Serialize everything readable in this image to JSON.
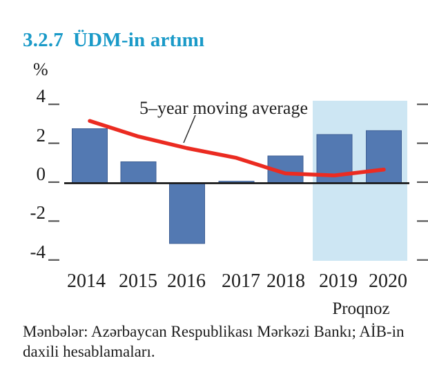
{
  "header": {
    "number": "3.2.7",
    "title": "ÜDM-in artımı"
  },
  "theme": {
    "title_color": "#1A9AC8",
    "text_color": "#1c1c1c",
    "axis_color": "#1a1a1a",
    "tick_color": "#555555"
  },
  "chart_data": {
    "type": "bar",
    "categories": [
      "2014",
      "2015",
      "2016",
      "2017",
      "2018",
      "2019",
      "2020"
    ],
    "bar_values": [
      2.8,
      1.1,
      -3.1,
      0.1,
      1.4,
      2.5,
      2.7
    ],
    "line_series": {
      "name": "5–year moving average",
      "values": [
        3.2,
        2.4,
        1.8,
        1.3,
        0.5,
        0.4,
        0.7
      ]
    },
    "ylabel": "%",
    "yticks": [
      4,
      2,
      0,
      -2,
      -4
    ],
    "ylim": [
      -4.2,
      4.2
    ],
    "grid": "off",
    "forecast_region": {
      "categories": [
        "2019",
        "2020"
      ],
      "label": "Proqnoz"
    },
    "colors": {
      "bar": "#5379B2",
      "bar_edge": "#3E5E94",
      "line": "#EB2B21",
      "forecast_shade": "#CDE6F3"
    }
  },
  "footer": {
    "source": "Mənbələr: Azərbaycan Respublikası Mərkəzi Bankı; AİB-in daxili hesablamaları."
  }
}
